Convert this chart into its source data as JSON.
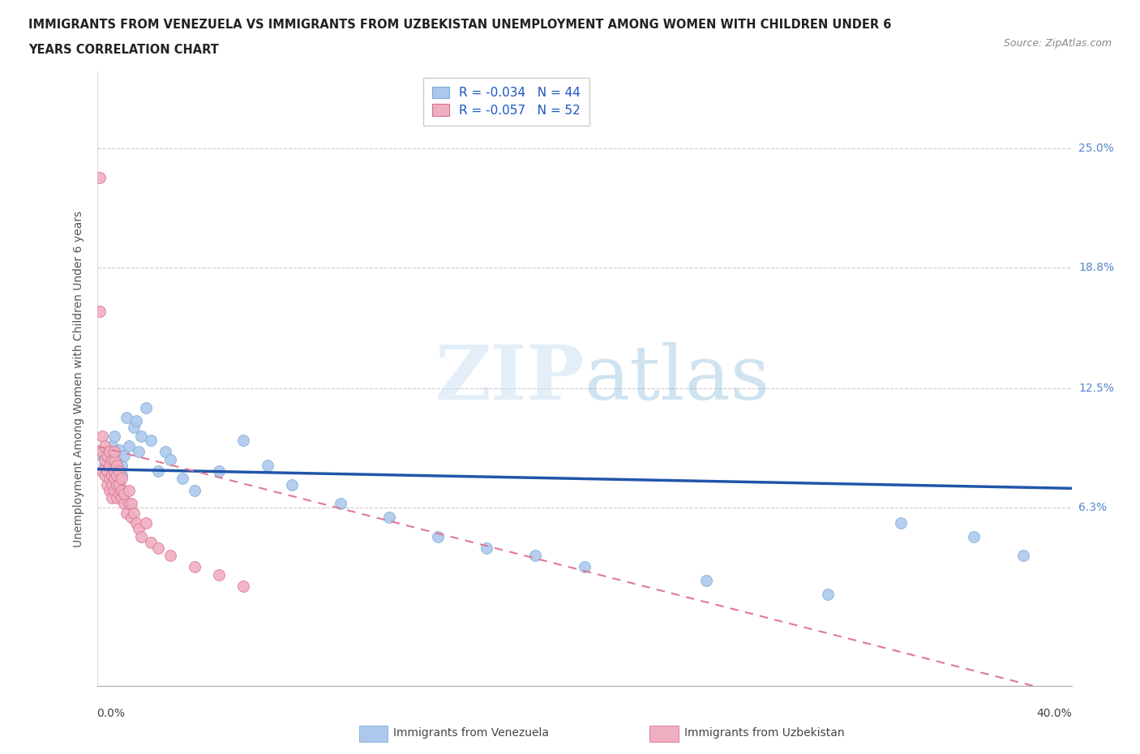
{
  "title_line1": "IMMIGRANTS FROM VENEZUELA VS IMMIGRANTS FROM UZBEKISTAN UNEMPLOYMENT AMONG WOMEN WITH CHILDREN UNDER 6",
  "title_line2": "YEARS CORRELATION CHART",
  "source_text": "Source: ZipAtlas.com",
  "ylabel": "Unemployment Among Women with Children Under 6 years",
  "yticks_labels": [
    "25.0%",
    "18.8%",
    "12.5%",
    "6.3%"
  ],
  "yticks_values": [
    0.25,
    0.188,
    0.125,
    0.063
  ],
  "xlim": [
    0.0,
    0.4
  ],
  "ylim": [
    -0.03,
    0.29
  ],
  "watermark_zip": "ZIP",
  "watermark_atlas": "atlas",
  "venezuela_R": -0.034,
  "venezuela_N": 44,
  "uzbekistan_R": -0.057,
  "uzbekistan_N": 52,
  "venezuela_color": "#adc8ed",
  "venezuela_edge_color": "#7aadd6",
  "venezuela_line_color": "#2255aa",
  "uzbekistan_color": "#f0afc0",
  "uzbekistan_edge_color": "#d87090",
  "uzbekistan_line_color": "#e07898",
  "venezuela_x": [
    0.002,
    0.003,
    0.004,
    0.005,
    0.005,
    0.006,
    0.006,
    0.007,
    0.007,
    0.008,
    0.008,
    0.009,
    0.009,
    0.01,
    0.01,
    0.011,
    0.012,
    0.013,
    0.015,
    0.016,
    0.017,
    0.018,
    0.02,
    0.022,
    0.025,
    0.028,
    0.03,
    0.035,
    0.04,
    0.05,
    0.06,
    0.07,
    0.08,
    0.1,
    0.12,
    0.14,
    0.16,
    0.18,
    0.2,
    0.25,
    0.3,
    0.33,
    0.36,
    0.38
  ],
  "venezuela_y": [
    0.09,
    0.085,
    0.092,
    0.088,
    0.082,
    0.095,
    0.078,
    0.1,
    0.075,
    0.088,
    0.082,
    0.093,
    0.075,
    0.085,
    0.08,
    0.09,
    0.11,
    0.095,
    0.105,
    0.108,
    0.092,
    0.1,
    0.115,
    0.098,
    0.082,
    0.092,
    0.088,
    0.078,
    0.072,
    0.082,
    0.098,
    0.085,
    0.075,
    0.065,
    0.058,
    0.048,
    0.042,
    0.038,
    0.032,
    0.025,
    0.018,
    0.055,
    0.048,
    0.038
  ],
  "uzbekistan_x": [
    0.001,
    0.001,
    0.002,
    0.002,
    0.002,
    0.003,
    0.003,
    0.003,
    0.004,
    0.004,
    0.004,
    0.005,
    0.005,
    0.005,
    0.005,
    0.006,
    0.006,
    0.006,
    0.006,
    0.007,
    0.007,
    0.007,
    0.007,
    0.007,
    0.008,
    0.008,
    0.008,
    0.008,
    0.009,
    0.009,
    0.009,
    0.01,
    0.01,
    0.01,
    0.011,
    0.011,
    0.012,
    0.013,
    0.013,
    0.014,
    0.014,
    0.015,
    0.016,
    0.017,
    0.018,
    0.02,
    0.022,
    0.025,
    0.03,
    0.04,
    0.05,
    0.06
  ],
  "uzbekistan_y": [
    0.235,
    0.165,
    0.082,
    0.092,
    0.1,
    0.08,
    0.088,
    0.095,
    0.075,
    0.082,
    0.09,
    0.072,
    0.078,
    0.085,
    0.092,
    0.068,
    0.075,
    0.08,
    0.088,
    0.072,
    0.078,
    0.082,
    0.088,
    0.092,
    0.068,
    0.075,
    0.08,
    0.085,
    0.07,
    0.075,
    0.082,
    0.068,
    0.072,
    0.078,
    0.065,
    0.07,
    0.06,
    0.065,
    0.072,
    0.058,
    0.065,
    0.06,
    0.055,
    0.052,
    0.048,
    0.055,
    0.045,
    0.042,
    0.038,
    0.032,
    0.028,
    0.022
  ],
  "ven_line_x0": 0.0,
  "ven_line_y0": 0.083,
  "ven_line_x1": 0.4,
  "ven_line_y1": 0.073,
  "uzb_line_x0": 0.0,
  "uzb_line_y0": 0.095,
  "uzb_line_x1": 0.4,
  "uzb_line_y1": -0.035
}
